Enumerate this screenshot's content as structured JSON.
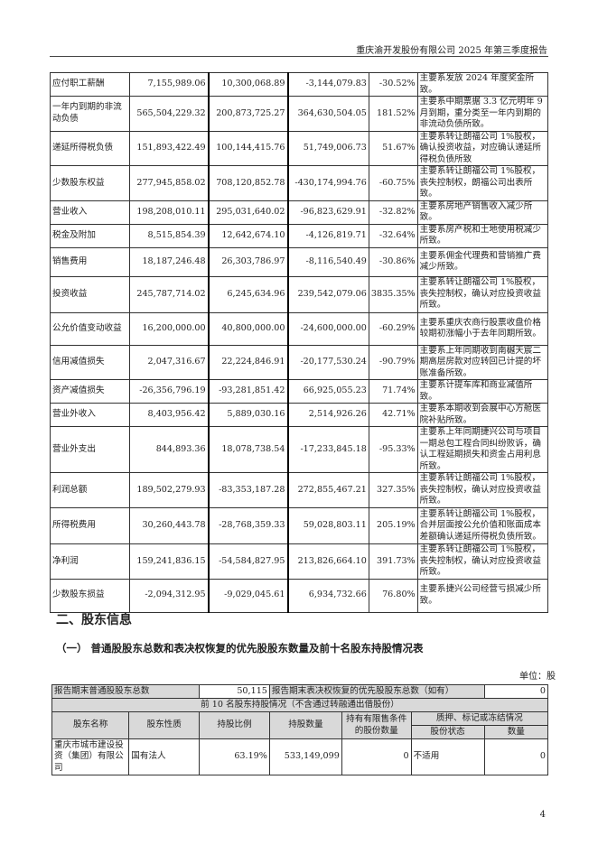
{
  "header": "重庆渝开发股份有限公司 2025 年第三季度报告",
  "change_table": {
    "rows": [
      [
        "应付职工薪酬",
        "7,155,989.06",
        "10,300,068.89",
        "-3,144,079.83",
        "-30.52%",
        "主要系发放 2024 年度奖金所致。"
      ],
      [
        "一年内到期的非流动负债",
        "565,504,229.32",
        "200,873,725.27",
        "364,630,504.05",
        "181.52%",
        "主要系中期票据 3.3 亿元明年 9 月到期，重分类至一年内到期的非流动负债所致。"
      ],
      [
        "递延所得税负债",
        "151,893,422.49",
        "100,144,415.76",
        "51,749,006.73",
        "51.67%",
        "主要系转让朗福公司 1%股权，确认投资收益，对应确认递延所得税负债所致"
      ],
      [
        "少数股东权益",
        "277,945,858.02",
        "708,120,852.78",
        "-430,174,994.76",
        "-60.75%",
        "主要系转让朗福公司 1%股权，丧失控制权，朗福公司出表所致。"
      ],
      [
        "营业收入",
        "198,208,010.11",
        "295,031,640.02",
        "-96,823,629.91",
        "-32.82%",
        "主要系房地产销售收入减少所致。"
      ],
      [
        "税金及附加",
        "8,515,854.39",
        "12,642,674.10",
        "-4,126,819.71",
        "-32.64%",
        "主要系房产税和土地使用税减少所致。"
      ],
      [
        "销售费用",
        "18,187,246.48",
        "26,303,786.97",
        "-8,116,540.49",
        "-30.86%",
        "主要系佣金代理费和营销推广费减少所致。"
      ],
      [
        "投资收益",
        "245,787,714.02",
        "6,245,634.96",
        "239,542,079.06",
        "3835.35%",
        "主要系转让朗福公司 1%股权，丧失控制权，确认对应投资收益所致。"
      ],
      [
        "公允价值变动收益",
        "16,200,000.00",
        "40,800,000.00",
        "-24,600,000.00",
        "-60.29%",
        "主要系重庆农商行股票收盘价格较期初涨幅小于去年同期所致。"
      ],
      [
        "信用减值损失",
        "2,047,316.67",
        "22,224,846.91",
        "-20,177,530.24",
        "-90.79%",
        "主要系上年同期收到南樾天宸二期高层房款对应转回已计提的坏账准备所致。"
      ],
      [
        "资产减值损失",
        "-26,356,796.19",
        "-93,281,851.42",
        "66,925,055.23",
        "71.74%",
        "主要系计提车库和商业减值所致。"
      ],
      [
        "营业外收入",
        "8,403,956.42",
        "5,889,030.16",
        "2,514,926.26",
        "42.71%",
        "主要系本期收到会展中心方舱医院补贴所致。"
      ],
      [
        "营业外支出",
        "844,893.36",
        "18,078,738.54",
        "-17,233,845.18",
        "-95.33%",
        "主要系上年同期捷兴公司与项目一期总包工程合同纠纷败诉，确认工程延期损失和资金占用利息所致。"
      ],
      [
        "利润总额",
        "189,502,279.93",
        "-83,353,187.28",
        "272,855,467.21",
        "327.35%",
        "主要系转让朗福公司 1%股权，丧失控制权，确认对应投资收益所致。"
      ],
      [
        "所得税费用",
        "30,260,443.78",
        "-28,768,359.33",
        "59,028,803.11",
        "205.19%",
        "主要系转让朗福公司 1%股权，合并层面按公允价值和账面成本差额确认递延所得税负债所致。"
      ],
      [
        "净利润",
        "159,241,836.15",
        "-54,584,827.95",
        "213,826,664.10",
        "391.73%",
        "主要系转让朗福公司 1%股权，丧失控制权，确认对应投资收益所致。"
      ],
      [
        "少数股东损益",
        "-2,094,312.95",
        "-9,029,045.61",
        "6,934,732.66",
        "76.80%",
        "主要系捷兴公司经营亏损减少所致。"
      ]
    ]
  },
  "section_title": "二、股东信息",
  "subsection_title": "（一） 普通股股东总数和表决权恢复的优先股股东数量及前十名股东持股情况表",
  "unit": "单位：股",
  "shareholder_table": {
    "total_label": "报告期末普通股股东总数",
    "total_value": "50,115",
    "pref_label": "报告期末表决权恢复的优先股股东总数（如有）",
    "pref_value": "0",
    "top10_caption": "前 10 名股东持股情况（不含通过转融通出借股份）",
    "headers": {
      "name": "股东名称",
      "nature": "股东性质",
      "ratio": "持股比例",
      "count": "持股数量",
      "restricted": "持有有限售条件的股份数量",
      "pledge": "质押、标记或冻结情况",
      "status": "股份状态",
      "qty": "数量"
    },
    "rows": [
      {
        "name": "重庆市城市建设投资（集团）有限公司",
        "nature": "国有法人",
        "ratio": "63.19%",
        "count": "533,149,099",
        "restricted": "0",
        "status": "不适用",
        "qty": "0"
      }
    ]
  },
  "page_number": "4"
}
